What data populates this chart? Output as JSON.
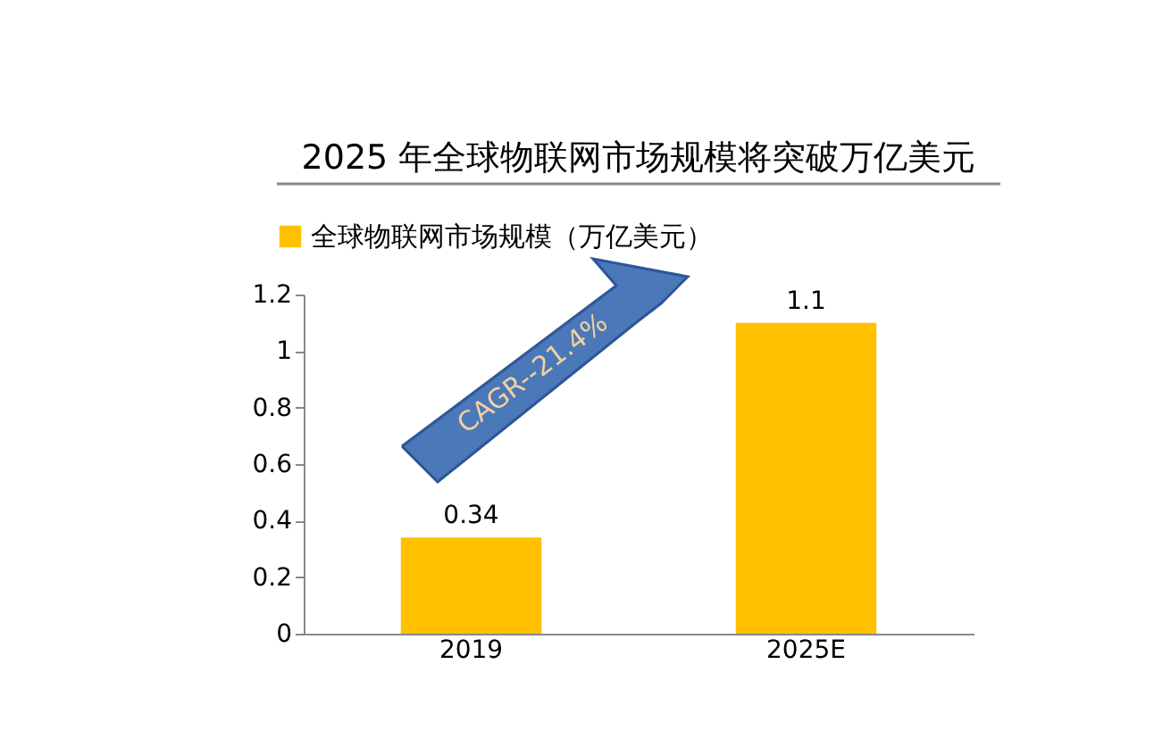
{
  "chart_data": {
    "type": "bar",
    "title": "2025 年全球物联网市场规模将突破万亿美元",
    "categories": [
      "2019",
      "2025E"
    ],
    "series": [
      {
        "name": "全球物联网市场规模（万亿美元）",
        "color": "#ffc000",
        "values": [
          0.34,
          1.1
        ]
      }
    ],
    "ylim": [
      0,
      1.2
    ],
    "yticks": [
      0,
      0.2,
      0.4,
      0.6,
      0.8,
      1,
      1.2
    ],
    "data_labels": true,
    "grid": false,
    "legend": "top left",
    "annotations": [
      "CAGR--21.4%"
    ]
  }
}
